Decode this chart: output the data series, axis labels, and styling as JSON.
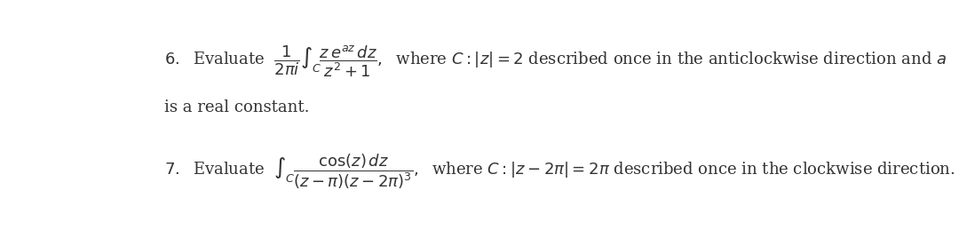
{
  "background_color": "#ffffff",
  "text_color": "#333333",
  "fig_width": 10.8,
  "fig_height": 2.68,
  "dpi": 100
}
